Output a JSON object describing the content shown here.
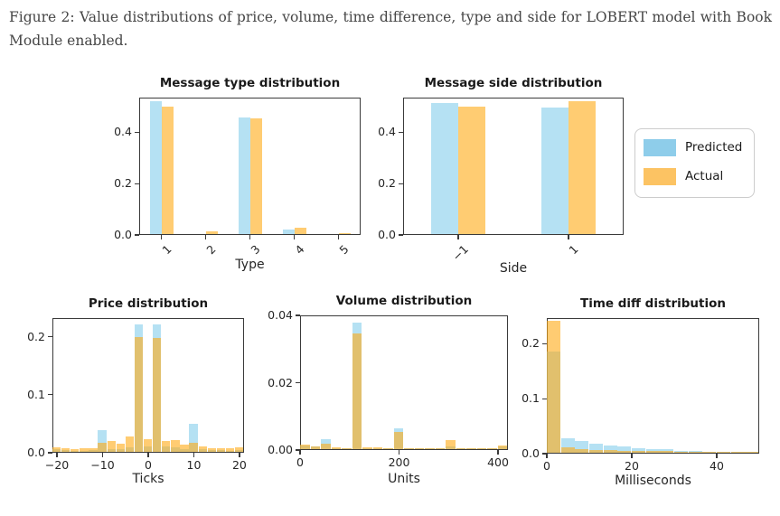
{
  "caption": {
    "text": "Figure 2: Value distributions of price, volume, time difference, type and side for LOBERT model with Book Module enabled."
  },
  "legend": {
    "items": [
      {
        "label": "Predicted",
        "color": "#8ECDEA"
      },
      {
        "label": "Actual",
        "color": "#FCC363"
      }
    ]
  },
  "colors": {
    "predicted_fill": "rgba(135,206,235,0.62)",
    "actual_fill": "rgba(255,170,20,0.60)",
    "spine": "#3a3a3a",
    "tick_label": "#262626"
  },
  "chart_data": [
    {
      "id": "type",
      "type": "bar",
      "title": "Message type distribution",
      "xlabel": "Type",
      "categories": [
        "1",
        "2",
        "3",
        "4",
        "5"
      ],
      "series": [
        {
          "name": "Predicted",
          "values": [
            0.519,
            0,
            0.455,
            0.016,
            0
          ]
        },
        {
          "name": "Actual",
          "values": [
            0.498,
            0.012,
            0.452,
            0.024,
            0.004
          ]
        }
      ],
      "yticks": [
        {
          "v": 0.0,
          "label": "0.0"
        },
        {
          "v": 0.2,
          "label": "0.2"
        },
        {
          "v": 0.4,
          "label": "0.4"
        }
      ],
      "ylim": [
        0,
        0.535
      ],
      "legend_position": "outside-right",
      "grid": false
    },
    {
      "id": "side",
      "type": "bar",
      "title": "Message side distribution",
      "xlabel": "Side",
      "categories": [
        "−1",
        "1"
      ],
      "series": [
        {
          "name": "Predicted",
          "values": [
            0.512,
            0.493
          ]
        },
        {
          "name": "Actual",
          "values": [
            0.496,
            0.516
          ]
        }
      ],
      "yticks": [
        {
          "v": 0.0,
          "label": "0.0"
        },
        {
          "v": 0.2,
          "label": "0.2"
        },
        {
          "v": 0.4,
          "label": "0.4"
        }
      ],
      "ylim": [
        0,
        0.535
      ],
      "grid": false
    },
    {
      "id": "price",
      "type": "histogram",
      "title": "Price distribution",
      "xlabel": "Ticks",
      "xlim": [
        -21,
        21
      ],
      "bin_width": 2,
      "bin_centers": [
        -20,
        -18,
        -16,
        -14,
        -12,
        -10,
        -8,
        -6,
        -4,
        -2,
        0,
        2,
        4,
        6,
        8,
        10,
        12,
        14,
        16,
        18,
        20
      ],
      "series": [
        {
          "name": "Predicted",
          "values": [
            0.004,
            0.003,
            0.002,
            0.002,
            0.003,
            0.037,
            0.005,
            0.005,
            0.008,
            0.22,
            0.01,
            0.22,
            0.01,
            0.008,
            0.005,
            0.048,
            0.004,
            0.003,
            0.003,
            0.002,
            0.003
          ]
        },
        {
          "name": "Actual",
          "values": [
            0.008,
            0.006,
            0.005,
            0.006,
            0.007,
            0.016,
            0.018,
            0.014,
            0.027,
            0.197,
            0.022,
            0.196,
            0.018,
            0.02,
            0.013,
            0.016,
            0.01,
            0.007,
            0.006,
            0.006,
            0.008
          ]
        }
      ],
      "yticks": [
        {
          "v": 0.0,
          "label": "0.0"
        },
        {
          "v": 0.1,
          "label": "0.1"
        },
        {
          "v": 0.2,
          "label": "0.2"
        }
      ],
      "ylim": [
        0,
        0.232
      ],
      "xticks": [
        {
          "v": -20,
          "label": "−20"
        },
        {
          "v": -10,
          "label": "−10"
        },
        {
          "v": 0,
          "label": "0"
        },
        {
          "v": 10,
          "label": "10"
        },
        {
          "v": 20,
          "label": "20"
        }
      ],
      "grid": false
    },
    {
      "id": "volume",
      "type": "histogram",
      "title": "Volume distribution",
      "xlabel": "Units",
      "xlim": [
        0,
        420
      ],
      "bin_width": 21,
      "bin_centers": [
        10.5,
        31.5,
        52.5,
        73.5,
        94.5,
        115.5,
        136.5,
        157.5,
        178.5,
        199.5,
        220.5,
        241.5,
        262.5,
        283.5,
        304.5,
        325.5,
        346.5,
        367.5,
        388.5,
        409.5
      ],
      "series": [
        {
          "name": "Predicted",
          "values": [
            0.001,
            0.0008,
            0.003,
            0.0004,
            0.0003,
            0.0376,
            0.0004,
            0.0004,
            0.0002,
            0.0061,
            0.0003,
            0.0002,
            0.0002,
            0.0002,
            0.0008,
            0.0002,
            0.0002,
            0.0001,
            0.0002,
            0.0008
          ]
        },
        {
          "name": "Actual",
          "values": [
            0.0013,
            0.0009,
            0.0016,
            0.0005,
            0.0004,
            0.0344,
            0.0005,
            0.0006,
            0.0003,
            0.0051,
            0.0004,
            0.0003,
            0.0002,
            0.0003,
            0.0027,
            0.0003,
            0.0002,
            0.0002,
            0.0002,
            0.0012
          ]
        }
      ],
      "yticks": [
        {
          "v": 0.0,
          "label": "0.00"
        },
        {
          "v": 0.02,
          "label": "0.02"
        },
        {
          "v": 0.04,
          "label": "0.04"
        }
      ],
      "ylim": [
        0,
        0.04
      ],
      "xticks": [
        {
          "v": 0,
          "label": "0"
        },
        {
          "v": 200,
          "label": "200"
        },
        {
          "v": 400,
          "label": "400"
        }
      ],
      "grid": false
    },
    {
      "id": "time",
      "type": "histogram",
      "title": "Time diff distribution",
      "xlabel": "Milliseconds",
      "xlim": [
        0,
        50
      ],
      "bin_width": 3.333,
      "bin_centers": [
        1.67,
        5,
        8.33,
        11.67,
        15,
        18.33,
        21.67,
        25,
        28.33,
        31.67,
        35,
        38.33,
        41.67,
        45,
        48.33
      ],
      "series": [
        {
          "name": "Predicted",
          "values": [
            0.185,
            0.027,
            0.022,
            0.016,
            0.013,
            0.011,
            0.009,
            0.007,
            0.006,
            0.004,
            0.003,
            0.002,
            0.002,
            0.001,
            0.001
          ]
        },
        {
          "name": "Actual",
          "values": [
            0.24,
            0.01,
            0.007,
            0.005,
            0.005,
            0.004,
            0.004,
            0.003,
            0.003,
            0.002,
            0.002,
            0.002,
            0.002,
            0.002,
            0.002
          ]
        }
      ],
      "yticks": [
        {
          "v": 0.0,
          "label": "0.0"
        },
        {
          "v": 0.1,
          "label": "0.1"
        },
        {
          "v": 0.2,
          "label": "0.2"
        }
      ],
      "ylim": [
        0,
        0.2467
      ],
      "xticks": [
        {
          "v": 0,
          "label": "0"
        },
        {
          "v": 20,
          "label": "20"
        },
        {
          "v": 40,
          "label": "40"
        }
      ],
      "grid": false
    }
  ]
}
